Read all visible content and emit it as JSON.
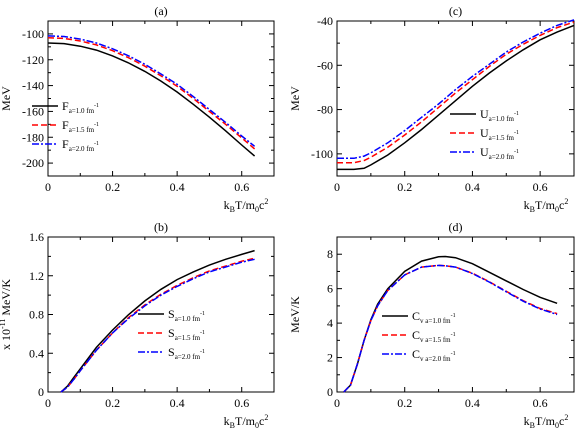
{
  "colors": {
    "black": "#000000",
    "red": "#ff0000",
    "blue": "#0000ff"
  },
  "chart_data": [
    {
      "id": "a",
      "type": "line",
      "title": "(a)",
      "xlabel_main": "k",
      "xlabel_sub": "B",
      "xlabel_rest": "T/m",
      "xlabel_sub2": "0",
      "xlabel_tail": "c",
      "xlabel_sup": "2",
      "xlabel_text": "kBT/m0c2",
      "ylabel": "MeV",
      "ylabel_prefix": "",
      "xlim": [
        0,
        0.7
      ],
      "ylim": [
        -210,
        -90
      ],
      "xticks": [
        0,
        0.2,
        0.4,
        0.6
      ],
      "xtick_labels": [
        "0",
        "0.2",
        "0.4",
        "0.6"
      ],
      "yticks": [
        -200,
        -180,
        -160,
        -140,
        -120,
        -100
      ],
      "ytick_labels": [
        "-200",
        "-180",
        "-160",
        "-140",
        "-120",
        "-100"
      ],
      "legend_position": "bottom-left",
      "legend_sub_unit": "fm",
      "legend_sub_exp": "-1",
      "series": [
        {
          "name": "F",
          "sub": "a=1.0 fm",
          "color": "#000000",
          "dash": "solid",
          "x": [
            0,
            0.05,
            0.1,
            0.15,
            0.2,
            0.25,
            0.3,
            0.35,
            0.4,
            0.45,
            0.5,
            0.55,
            0.6,
            0.64
          ],
          "y": [
            -107,
            -107.5,
            -109.5,
            -112.5,
            -117,
            -122.5,
            -129,
            -136.5,
            -145,
            -154.5,
            -164.5,
            -175,
            -186,
            -194.5
          ]
        },
        {
          "name": "F",
          "sub": "a=1.5 fm",
          "color": "#ff0000",
          "dash": "dashed",
          "x": [
            0,
            0.05,
            0.1,
            0.15,
            0.2,
            0.25,
            0.3,
            0.35,
            0.4,
            0.45,
            0.5,
            0.55,
            0.6,
            0.64
          ],
          "y": [
            -103,
            -103.5,
            -105.5,
            -108.5,
            -113,
            -118.5,
            -125,
            -132.5,
            -140.5,
            -150,
            -160,
            -170,
            -180.5,
            -189
          ]
        },
        {
          "name": "F",
          "sub": "a=2.0 fm",
          "color": "#0000ff",
          "dash": "dashdot",
          "x": [
            0,
            0.05,
            0.1,
            0.15,
            0.2,
            0.25,
            0.3,
            0.35,
            0.4,
            0.45,
            0.5,
            0.55,
            0.6,
            0.64
          ],
          "y": [
            -101.5,
            -102,
            -104,
            -107,
            -111.5,
            -117,
            -123.5,
            -131,
            -139,
            -148.5,
            -158.5,
            -168.5,
            -179,
            -187
          ]
        }
      ]
    },
    {
      "id": "c",
      "type": "line",
      "title": "(c)",
      "xlabel_text": "kBT/m0c2",
      "ylabel": "MeV",
      "ylabel_prefix": "",
      "xlim": [
        0,
        0.7
      ],
      "ylim": [
        -110,
        -40
      ],
      "xticks": [
        0,
        0.2,
        0.4,
        0.6
      ],
      "xtick_labels": [
        "0",
        "0.2",
        "0.4",
        "0.6"
      ],
      "yticks": [
        -100,
        -80,
        -60,
        -40
      ],
      "ytick_labels": [
        "-100",
        "-80",
        "-60",
        "-40"
      ],
      "legend_position": "bottom-right",
      "series": [
        {
          "name": "U",
          "sub": "a=1.0 fm",
          "color": "#000000",
          "dash": "solid",
          "x": [
            0,
            0.05,
            0.08,
            0.1,
            0.15,
            0.2,
            0.25,
            0.3,
            0.35,
            0.4,
            0.45,
            0.5,
            0.55,
            0.6,
            0.65,
            0.7
          ],
          "y": [
            -107,
            -107,
            -106.5,
            -105,
            -100.5,
            -95,
            -89,
            -82.5,
            -76,
            -69.5,
            -63.5,
            -58,
            -53,
            -48.5,
            -45,
            -42
          ]
        },
        {
          "name": "U",
          "sub": "a=1.5 fm",
          "color": "#ff0000",
          "dash": "dashed",
          "x": [
            0,
            0.05,
            0.08,
            0.1,
            0.15,
            0.2,
            0.25,
            0.3,
            0.35,
            0.4,
            0.45,
            0.5,
            0.55,
            0.6,
            0.65,
            0.7
          ],
          "y": [
            -104,
            -104,
            -103,
            -101.5,
            -97,
            -91.5,
            -85.5,
            -79,
            -72.5,
            -66.5,
            -60.5,
            -55,
            -50.5,
            -46.5,
            -43,
            -40.5
          ]
        },
        {
          "name": "U",
          "sub": "a=2.0 fm",
          "color": "#0000ff",
          "dash": "dashdot",
          "x": [
            0,
            0.05,
            0.08,
            0.1,
            0.15,
            0.2,
            0.25,
            0.3,
            0.35,
            0.4,
            0.45,
            0.5,
            0.55,
            0.6,
            0.65,
            0.7
          ],
          "y": [
            -102,
            -102,
            -101,
            -99.5,
            -95,
            -89.5,
            -83.5,
            -77.5,
            -71,
            -65,
            -59.5,
            -54,
            -49.5,
            -45.5,
            -42,
            -39.5
          ]
        }
      ]
    },
    {
      "id": "b",
      "type": "line",
      "title": "(b)",
      "xlabel_text": "kBT/m0c2",
      "ylabel": "MeV/K",
      "ylabel_prefix": "x 10",
      "ylabel_prefix_sup": "-11",
      "xlim": [
        0,
        0.7
      ],
      "ylim": [
        0,
        1.6
      ],
      "xticks": [
        0,
        0.2,
        0.4,
        0.6
      ],
      "xtick_labels": [
        "0",
        "0.2",
        "0.4",
        "0.6"
      ],
      "yticks": [
        0,
        0.4,
        0.8,
        1.2,
        1.6
      ],
      "ytick_labels": [
        "0",
        "0.4",
        "0.8",
        "1.2",
        "1.6"
      ],
      "legend_position": "bottom-right",
      "series": [
        {
          "name": "S",
          "sub": "a=1.0 fm",
          "color": "#000000",
          "dash": "solid",
          "x": [
            0.04,
            0.06,
            0.08,
            0.1,
            0.15,
            0.2,
            0.25,
            0.3,
            0.35,
            0.4,
            0.45,
            0.5,
            0.55,
            0.6,
            0.64
          ],
          "y": [
            0,
            0.06,
            0.15,
            0.24,
            0.46,
            0.64,
            0.8,
            0.94,
            1.06,
            1.16,
            1.24,
            1.31,
            1.37,
            1.42,
            1.46
          ]
        },
        {
          "name": "S",
          "sub": "a=1.5 fm",
          "color": "#ff0000",
          "dash": "dashed",
          "x": [
            0.04,
            0.06,
            0.08,
            0.1,
            0.15,
            0.2,
            0.25,
            0.3,
            0.35,
            0.4,
            0.45,
            0.5,
            0.55,
            0.6,
            0.64
          ],
          "y": [
            0,
            0.05,
            0.13,
            0.22,
            0.43,
            0.61,
            0.77,
            0.9,
            1.01,
            1.1,
            1.18,
            1.25,
            1.3,
            1.35,
            1.38
          ]
        },
        {
          "name": "S",
          "sub": "a=2.0 fm",
          "color": "#0000ff",
          "dash": "dashdot",
          "x": [
            0.04,
            0.06,
            0.08,
            0.1,
            0.15,
            0.2,
            0.25,
            0.3,
            0.35,
            0.4,
            0.45,
            0.5,
            0.55,
            0.6,
            0.64
          ],
          "y": [
            0,
            0.05,
            0.13,
            0.22,
            0.43,
            0.61,
            0.76,
            0.89,
            1.0,
            1.09,
            1.17,
            1.24,
            1.29,
            1.34,
            1.37
          ]
        }
      ]
    },
    {
      "id": "d",
      "type": "line",
      "title": "(d)",
      "xlabel_text": "kBT/m0c2",
      "ylabel": "MeV/K",
      "ylabel_prefix": "",
      "xlim": [
        0,
        0.7
      ],
      "ylim": [
        0,
        9
      ],
      "xticks": [
        0,
        0.2,
        0.4,
        0.6
      ],
      "xtick_labels": [
        "0",
        "0.2",
        "0.4",
        "0.6"
      ],
      "yticks": [
        0,
        2,
        4,
        6,
        8
      ],
      "ytick_labels": [
        "0",
        "2",
        "4",
        "6",
        "8"
      ],
      "legend_position": "bottom-right",
      "series": [
        {
          "name": "C",
          "sub": "v a=1.0 fm",
          "color": "#000000",
          "dash": "solid",
          "x": [
            0.02,
            0.04,
            0.06,
            0.08,
            0.1,
            0.12,
            0.15,
            0.2,
            0.25,
            0.3,
            0.32,
            0.35,
            0.4,
            0.45,
            0.5,
            0.55,
            0.6,
            0.65
          ],
          "y": [
            0,
            0.4,
            1.6,
            3.0,
            4.2,
            5.1,
            6.0,
            7.0,
            7.6,
            7.85,
            7.87,
            7.8,
            7.45,
            6.95,
            6.45,
            5.95,
            5.5,
            5.15
          ]
        },
        {
          "name": "C",
          "sub": "v a=1.5 fm",
          "color": "#ff0000",
          "dash": "dashed",
          "x": [
            0.02,
            0.04,
            0.06,
            0.08,
            0.1,
            0.12,
            0.15,
            0.2,
            0.25,
            0.3,
            0.32,
            0.35,
            0.4,
            0.45,
            0.5,
            0.55,
            0.6,
            0.65
          ],
          "y": [
            0,
            0.4,
            1.6,
            3.0,
            4.15,
            5.0,
            5.9,
            6.8,
            7.25,
            7.35,
            7.33,
            7.25,
            6.9,
            6.4,
            5.85,
            5.3,
            4.85,
            4.55
          ]
        },
        {
          "name": "C",
          "sub": "v a=2.0 fm",
          "color": "#0000ff",
          "dash": "dashdot",
          "x": [
            0.02,
            0.04,
            0.06,
            0.08,
            0.1,
            0.12,
            0.15,
            0.2,
            0.25,
            0.3,
            0.32,
            0.35,
            0.4,
            0.45,
            0.5,
            0.55,
            0.6,
            0.65
          ],
          "y": [
            0,
            0.4,
            1.6,
            3.0,
            4.15,
            5.0,
            5.9,
            6.8,
            7.25,
            7.35,
            7.33,
            7.25,
            6.88,
            6.38,
            5.82,
            5.27,
            4.82,
            4.5
          ]
        }
      ]
    }
  ]
}
